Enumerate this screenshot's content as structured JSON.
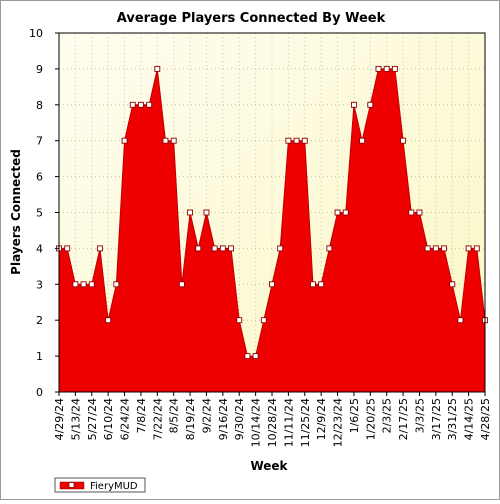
{
  "chart_data": {
    "type": "area",
    "title": "Average Players Connected By Week",
    "xlabel": "Week",
    "ylabel": "Players Connected",
    "ylim": [
      0,
      10
    ],
    "yticks": [
      0,
      1,
      2,
      3,
      4,
      5,
      6,
      7,
      8,
      9,
      10
    ],
    "grid": true,
    "legend_position": "bottom-left",
    "x_tick_labels": [
      "4/29/24",
      "5/13/24",
      "5/27/24",
      "6/10/24",
      "6/24/24",
      "7/8/24",
      "7/22/24",
      "8/5/24",
      "8/19/24",
      "9/2/24",
      "9/16/24",
      "9/30/24",
      "10/14/24",
      "10/28/24",
      "11/11/24",
      "11/25/24",
      "12/9/24",
      "12/23/24",
      "1/6/25",
      "1/20/25",
      "2/3/25",
      "2/17/25",
      "3/3/25",
      "3/17/25",
      "3/31/25",
      "4/14/25",
      "4/28/25"
    ],
    "series": [
      {
        "name": "FieryMUD",
        "color": "#ee0000",
        "x": [
          "4/29/24",
          "5/6/24",
          "5/13/24",
          "5/20/24",
          "5/27/24",
          "6/3/24",
          "6/10/24",
          "6/17/24",
          "6/24/24",
          "7/1/24",
          "7/8/24",
          "7/15/24",
          "7/22/24",
          "7/29/24",
          "8/5/24",
          "8/12/24",
          "8/19/24",
          "8/26/24",
          "9/2/24",
          "9/9/24",
          "9/16/24",
          "9/23/24",
          "9/30/24",
          "10/7/24",
          "10/14/24",
          "10/21/24",
          "10/28/24",
          "11/4/24",
          "11/11/24",
          "11/18/24",
          "11/25/24",
          "12/2/24",
          "12/9/24",
          "12/16/24",
          "12/23/24",
          "12/30/24",
          "1/6/25",
          "1/13/25",
          "1/20/25",
          "1/27/25",
          "2/3/25",
          "2/10/25",
          "2/17/25",
          "2/24/25",
          "3/3/25",
          "3/10/25",
          "3/17/25",
          "3/24/25",
          "3/31/25",
          "4/7/25",
          "4/14/25",
          "4/21/25",
          "4/28/25"
        ],
        "values": [
          4,
          4,
          3,
          3,
          3,
          4,
          2,
          3,
          7,
          8,
          8,
          8,
          9,
          7,
          7,
          3,
          5,
          4,
          5,
          4,
          4,
          4,
          2,
          1,
          1,
          2,
          3,
          4,
          7,
          7,
          7,
          3,
          3,
          4,
          5,
          5,
          8,
          7,
          8,
          9,
          9,
          9,
          7,
          5,
          5,
          4,
          4,
          4,
          3,
          2,
          4,
          4,
          2
        ]
      }
    ]
  }
}
